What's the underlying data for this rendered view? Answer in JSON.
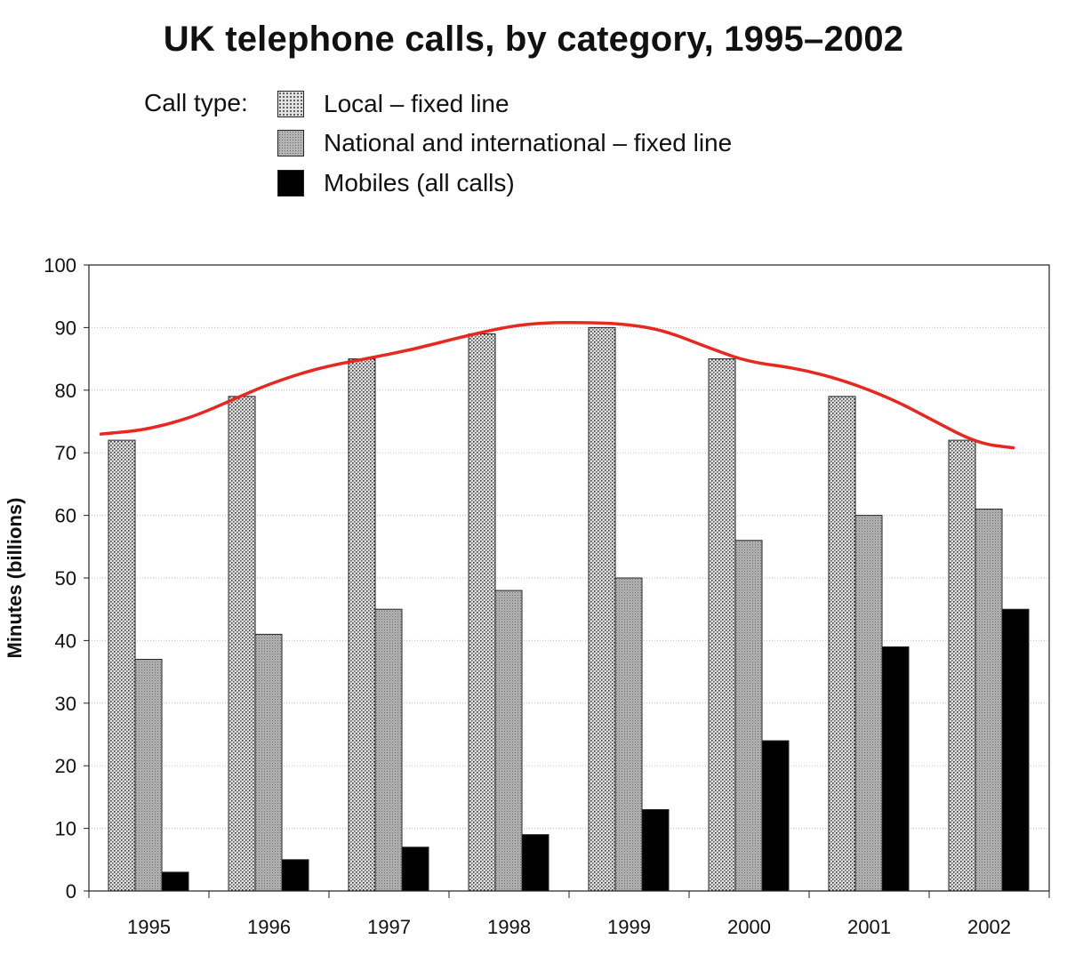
{
  "chart_data": {
    "type": "bar",
    "title": "UK telephone calls, by category, 1995–2002",
    "legend_title": "Call type:",
    "xlabel": "",
    "ylabel": "Minutes (billions)",
    "ylim": [
      0,
      100
    ],
    "yticks": [
      0,
      10,
      20,
      30,
      40,
      50,
      60,
      70,
      80,
      90,
      100
    ],
    "grid": true,
    "legend_position": "top",
    "categories": [
      "1995",
      "1996",
      "1997",
      "1998",
      "1999",
      "2000",
      "2001",
      "2002"
    ],
    "series": [
      {
        "name": "Local – fixed line",
        "values": [
          72,
          79,
          85,
          89,
          90,
          85,
          79,
          72
        ],
        "color": "#cfcfcf",
        "pattern": "dots"
      },
      {
        "name": "National and international – fixed line",
        "values": [
          37,
          41,
          45,
          48,
          50,
          56,
          60,
          61
        ],
        "color": "#a9a9a9",
        "pattern": "fine"
      },
      {
        "name": "Mobiles (all calls)",
        "values": [
          3,
          5,
          7,
          9,
          13,
          24,
          39,
          45
        ],
        "color": "#000000",
        "pattern": "solid"
      }
    ],
    "annotation": {
      "type": "freehand-trend-line",
      "color": "#e8281f",
      "x": [
        1994.6,
        1994.9,
        1995.15,
        1995.4,
        1995.7,
        1996.0,
        1996.4,
        1996.8,
        1997.2,
        1997.6,
        1998.0,
        1998.3,
        1998.7,
        1999.0,
        1999.3,
        1999.7,
        2000.0,
        2000.4,
        2000.8,
        2001.2,
        2001.5,
        2001.9,
        2002.2
      ],
      "y": [
        73,
        73.5,
        74.5,
        76,
        78.5,
        81,
        83.5,
        85,
        86.5,
        88.5,
        90.2,
        90.8,
        90.8,
        90.5,
        89.5,
        86.5,
        84.5,
        83.5,
        81.5,
        78.5,
        75.5,
        71.5,
        70.8
      ]
    }
  }
}
